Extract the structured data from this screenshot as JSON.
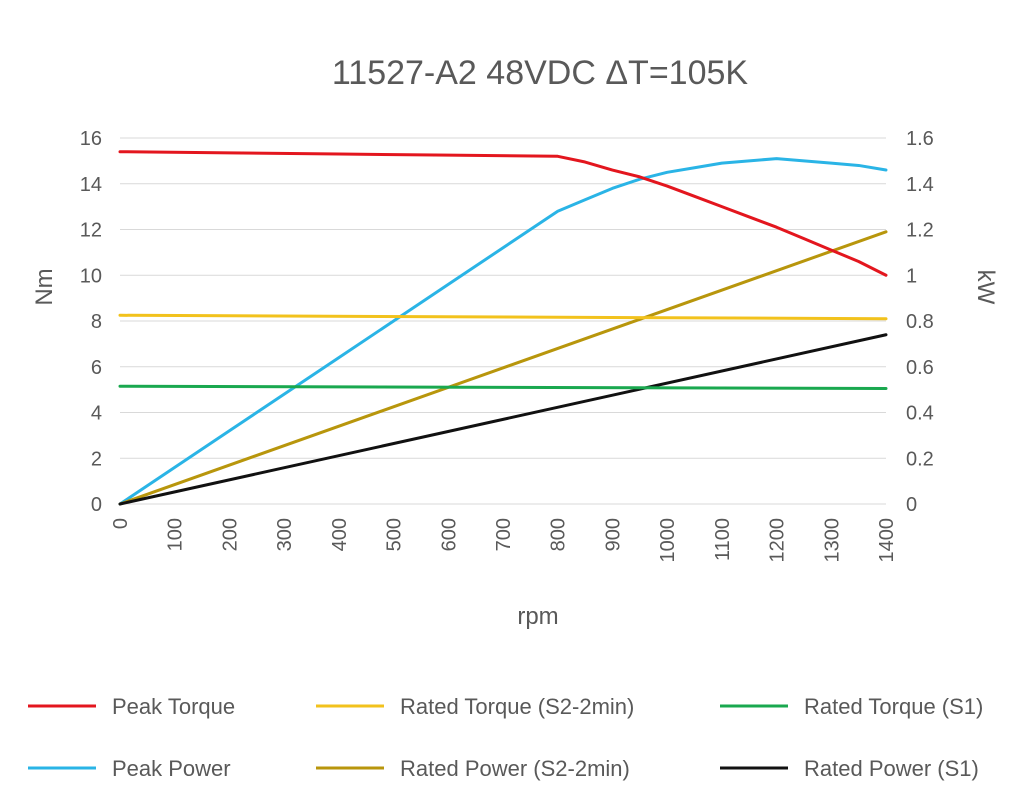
{
  "chart_data": {
    "type": "line",
    "title": "11527-A2 48VDC ΔT=105K",
    "xlabel": "rpm",
    "ylabel_left": "Nm",
    "ylabel_right": "kW",
    "xlim": [
      0,
      1400
    ],
    "ylim_left": [
      0,
      16
    ],
    "ylim_right": [
      0,
      1.6
    ],
    "x_ticks": [
      0,
      100,
      200,
      300,
      400,
      500,
      600,
      700,
      800,
      900,
      1000,
      1100,
      1200,
      1300,
      1400
    ],
    "y_ticks_left": [
      "0",
      "2",
      "4",
      "6",
      "8",
      "10",
      "12",
      "14",
      "16"
    ],
    "y_ticks_right": [
      "0",
      "0.2",
      "0.4",
      "0.6",
      "0.8",
      "1",
      "1.2",
      "1.4",
      "1.6"
    ],
    "grid": true,
    "legend_position": "bottom",
    "series": [
      {
        "name": "Peak Torque",
        "axis": "left",
        "color": "#e3161e",
        "x": [
          0,
          200,
          400,
          600,
          800,
          850,
          900,
          950,
          1000,
          1050,
          1100,
          1150,
          1200,
          1250,
          1300,
          1350,
          1400
        ],
        "values": [
          15.4,
          15.35,
          15.3,
          15.25,
          15.2,
          14.95,
          14.6,
          14.3,
          13.9,
          13.45,
          13.0,
          12.55,
          12.1,
          11.6,
          11.1,
          10.6,
          10.0
        ]
      },
      {
        "name": "Rated Torque (S2-2min)",
        "axis": "left",
        "color": "#f2c21c",
        "x": [
          0,
          1400
        ],
        "values": [
          8.25,
          8.1
        ]
      },
      {
        "name": "Rated Torque (S1)",
        "axis": "left",
        "color": "#1aa84f",
        "x": [
          0,
          1400
        ],
        "values": [
          5.15,
          5.05
        ]
      },
      {
        "name": "Peak Power",
        "axis": "right",
        "color": "#2ab4e6",
        "x": [
          0,
          200,
          400,
          600,
          800,
          850,
          900,
          950,
          1000,
          1050,
          1100,
          1150,
          1200,
          1250,
          1300,
          1350,
          1400
        ],
        "values": [
          0,
          0.32,
          0.64,
          0.96,
          1.28,
          1.33,
          1.38,
          1.42,
          1.45,
          1.47,
          1.49,
          1.5,
          1.51,
          1.5,
          1.49,
          1.48,
          1.46
        ]
      },
      {
        "name": "Rated Power (S2-2min)",
        "axis": "right",
        "color": "#b8960c",
        "x": [
          0,
          1400
        ],
        "values": [
          0,
          1.19
        ]
      },
      {
        "name": "Rated Power (S1)",
        "axis": "right",
        "color": "#111111",
        "x": [
          0,
          1400
        ],
        "values": [
          0,
          0.74
        ]
      }
    ]
  }
}
